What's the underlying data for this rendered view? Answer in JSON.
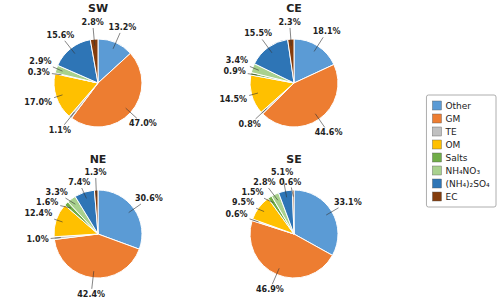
{
  "chart_data": [
    {
      "type": "pie",
      "title": "SW",
      "categories": [
        "Other",
        "GM",
        "TE",
        "OM",
        "Salts",
        "NH₄NO₃",
        "(NH₄)₂SO₄",
        "EC"
      ],
      "values": [
        13.2,
        47.0,
        1.1,
        17.0,
        0.3,
        2.9,
        15.6,
        2.8
      ],
      "value_labels": [
        "13.2%",
        "47.0%",
        "1.1%",
        "17.0%",
        "0.3%",
        "2.9%",
        "15.6%",
        "2.8%"
      ],
      "colors": [
        "#5b9bd5",
        "#ed7d31",
        "#c0c0c0",
        "#ffc000",
        "#70ad47",
        "#a9d18e",
        "#2e75b6",
        "#843c0c"
      ],
      "data_labels": true,
      "legend": "right"
    },
    {
      "type": "pie",
      "title": "CE",
      "categories": [
        "Other",
        "GM",
        "TE",
        "OM",
        "Salts",
        "NH₄NO₃",
        "(NH₄)₂SO₄",
        "EC"
      ],
      "values": [
        18.1,
        44.6,
        0.8,
        14.5,
        0.9,
        3.4,
        15.5,
        2.3
      ],
      "value_labels": [
        "18.1%",
        "44.6%",
        "0.8%",
        "14.5%",
        "0.9%",
        "3.4%",
        "15.5%",
        "2.3%"
      ],
      "colors": [
        "#5b9bd5",
        "#ed7d31",
        "#c0c0c0",
        "#ffc000",
        "#70ad47",
        "#a9d18e",
        "#2e75b6",
        "#843c0c"
      ],
      "data_labels": true,
      "legend": "right"
    },
    {
      "type": "pie",
      "title": "NE",
      "categories": [
        "Other",
        "GM",
        "TE",
        "OM",
        "Salts",
        "NH₄NO₃",
        "(NH₄)₂SO₄",
        "EC"
      ],
      "values": [
        30.6,
        42.4,
        1.0,
        12.4,
        1.6,
        3.3,
        7.4,
        1.3
      ],
      "value_labels": [
        "30.6%",
        "42.4%",
        "1.0%",
        "12.4%",
        "1.6%",
        "3.3%",
        "7.4%",
        "1.3%"
      ],
      "colors": [
        "#5b9bd5",
        "#ed7d31",
        "#c0c0c0",
        "#ffc000",
        "#70ad47",
        "#a9d18e",
        "#2e75b6",
        "#843c0c"
      ],
      "data_labels": true,
      "legend": "right"
    },
    {
      "type": "pie",
      "title": "SE",
      "categories": [
        "Other",
        "GM",
        "TE",
        "OM",
        "Salts",
        "NH₄NO₃",
        "(NH₄)₂SO₄",
        "EC"
      ],
      "values": [
        33.1,
        46.9,
        0.6,
        9.5,
        1.5,
        2.8,
        5.1,
        0.6
      ],
      "value_labels": [
        "33.1%",
        "46.9%",
        "0.6%",
        "9.5%",
        "1.5%",
        "2.8%",
        "5.1%",
        "0.6%"
      ],
      "colors": [
        "#5b9bd5",
        "#ed7d31",
        "#c0c0c0",
        "#ffc000",
        "#70ad47",
        "#a9d18e",
        "#2e75b6",
        "#843c0c"
      ],
      "data_labels": true,
      "legend": "right"
    }
  ]
}
